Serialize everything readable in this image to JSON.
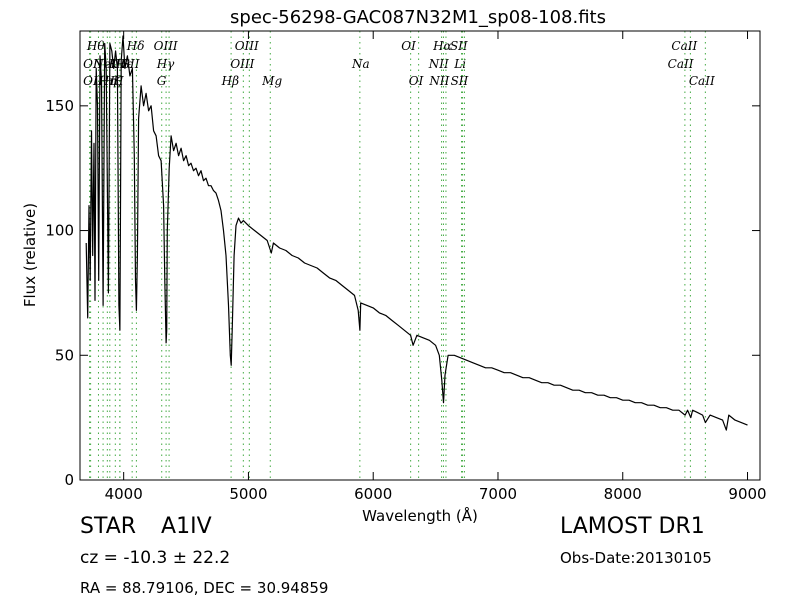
{
  "chart_data": {
    "type": "line",
    "title": "spec-56298-GAC087N32M1_sp08-108.fits",
    "xlabel": "Wavelength (Å)",
    "ylabel": "Flux (relative)",
    "xlim": [
      3650,
      9100
    ],
    "ylim": [
      0,
      180
    ],
    "x_ticks": [
      4000,
      5000,
      6000,
      7000,
      8000,
      9000
    ],
    "y_ticks": [
      0,
      50,
      100,
      150
    ],
    "grid": false,
    "series": [
      {
        "color": "#000000",
        "points": [
          [
            3700,
            95
          ],
          [
            3712,
            65
          ],
          [
            3722,
            110
          ],
          [
            3732,
            80
          ],
          [
            3742,
            140
          ],
          [
            3752,
            90
          ],
          [
            3762,
            135
          ],
          [
            3770,
            72
          ],
          [
            3780,
            165
          ],
          [
            3790,
            150
          ],
          [
            3800,
            80
          ],
          [
            3810,
            170
          ],
          [
            3822,
            160
          ],
          [
            3835,
            70
          ],
          [
            3848,
            175
          ],
          [
            3860,
            165
          ],
          [
            3878,
            75
          ],
          [
            3890,
            175
          ],
          [
            3905,
            172
          ],
          [
            3920,
            165
          ],
          [
            3935,
            172
          ],
          [
            3950,
            165
          ],
          [
            3962,
            70
          ],
          [
            3970,
            60
          ],
          [
            3980,
            168
          ],
          [
            3995,
            178
          ],
          [
            4010,
            165
          ],
          [
            4030,
            170
          ],
          [
            4050,
            162
          ],
          [
            4070,
            165
          ],
          [
            4085,
            130
          ],
          [
            4095,
            80
          ],
          [
            4102,
            68
          ],
          [
            4110,
            90
          ],
          [
            4120,
            145
          ],
          [
            4140,
            158
          ],
          [
            4160,
            150
          ],
          [
            4180,
            155
          ],
          [
            4200,
            148
          ],
          [
            4220,
            150
          ],
          [
            4240,
            140
          ],
          [
            4260,
            138
          ],
          [
            4280,
            130
          ],
          [
            4300,
            128
          ],
          [
            4320,
            110
          ],
          [
            4330,
            80
          ],
          [
            4340,
            55
          ],
          [
            4345,
            60
          ],
          [
            4350,
            100
          ],
          [
            4365,
            125
          ],
          [
            4380,
            138
          ],
          [
            4400,
            132
          ],
          [
            4420,
            135
          ],
          [
            4440,
            130
          ],
          [
            4460,
            133
          ],
          [
            4480,
            128
          ],
          [
            4500,
            130
          ],
          [
            4520,
            126
          ],
          [
            4540,
            127
          ],
          [
            4560,
            124
          ],
          [
            4580,
            125
          ],
          [
            4600,
            122
          ],
          [
            4620,
            124
          ],
          [
            4640,
            120
          ],
          [
            4660,
            121
          ],
          [
            4680,
            118
          ],
          [
            4700,
            118
          ],
          [
            4720,
            116
          ],
          [
            4740,
            115
          ],
          [
            4760,
            112
          ],
          [
            4780,
            108
          ],
          [
            4800,
            100
          ],
          [
            4820,
            90
          ],
          [
            4840,
            70
          ],
          [
            4855,
            50
          ],
          [
            4862,
            46
          ],
          [
            4870,
            60
          ],
          [
            4885,
            90
          ],
          [
            4900,
            102
          ],
          [
            4920,
            105
          ],
          [
            4940,
            103
          ],
          [
            4960,
            104
          ],
          [
            4980,
            103
          ],
          [
            5000,
            102
          ],
          [
            5050,
            100
          ],
          [
            5100,
            98
          ],
          [
            5150,
            96
          ],
          [
            5183,
            91
          ],
          [
            5200,
            95
          ],
          [
            5250,
            93
          ],
          [
            5300,
            92
          ],
          [
            5350,
            90
          ],
          [
            5400,
            89
          ],
          [
            5450,
            87
          ],
          [
            5500,
            86
          ],
          [
            5550,
            85
          ],
          [
            5600,
            83
          ],
          [
            5650,
            81
          ],
          [
            5700,
            80
          ],
          [
            5750,
            78
          ],
          [
            5800,
            76
          ],
          [
            5850,
            74
          ],
          [
            5880,
            68
          ],
          [
            5893,
            60
          ],
          [
            5900,
            71
          ],
          [
            5950,
            70
          ],
          [
            6000,
            69
          ],
          [
            6050,
            67
          ],
          [
            6100,
            66
          ],
          [
            6150,
            64
          ],
          [
            6200,
            62
          ],
          [
            6250,
            60
          ],
          [
            6300,
            58
          ],
          [
            6320,
            54
          ],
          [
            6350,
            58
          ],
          [
            6400,
            57
          ],
          [
            6450,
            56
          ],
          [
            6500,
            54
          ],
          [
            6530,
            50
          ],
          [
            6550,
            40
          ],
          [
            6563,
            31
          ],
          [
            6575,
            42
          ],
          [
            6600,
            50
          ],
          [
            6650,
            50
          ],
          [
            6700,
            49
          ],
          [
            6750,
            48
          ],
          [
            6800,
            47
          ],
          [
            6850,
            46
          ],
          [
            6900,
            45
          ],
          [
            6950,
            45
          ],
          [
            7000,
            44
          ],
          [
            7050,
            43
          ],
          [
            7100,
            43
          ],
          [
            7150,
            42
          ],
          [
            7200,
            41
          ],
          [
            7250,
            41
          ],
          [
            7300,
            40
          ],
          [
            7350,
            39
          ],
          [
            7400,
            39
          ],
          [
            7450,
            38
          ],
          [
            7500,
            38
          ],
          [
            7550,
            37
          ],
          [
            7600,
            36
          ],
          [
            7650,
            36
          ],
          [
            7700,
            35
          ],
          [
            7750,
            35
          ],
          [
            7800,
            34
          ],
          [
            7850,
            34
          ],
          [
            7900,
            33
          ],
          [
            7950,
            33
          ],
          [
            8000,
            32
          ],
          [
            8050,
            32
          ],
          [
            8100,
            31
          ],
          [
            8150,
            31
          ],
          [
            8200,
            30
          ],
          [
            8250,
            30
          ],
          [
            8300,
            29
          ],
          [
            8350,
            29
          ],
          [
            8400,
            28
          ],
          [
            8450,
            28
          ],
          [
            8500,
            26
          ],
          [
            8520,
            28
          ],
          [
            8545,
            25
          ],
          [
            8560,
            28
          ],
          [
            8600,
            27
          ],
          [
            8640,
            26
          ],
          [
            8662,
            23
          ],
          [
            8700,
            26
          ],
          [
            8750,
            25
          ],
          [
            8800,
            24
          ],
          [
            8830,
            20
          ],
          [
            8850,
            26
          ],
          [
            8900,
            24
          ],
          [
            8950,
            23
          ],
          [
            9000,
            22
          ]
        ]
      }
    ],
    "lines": [
      {
        "x": 3727,
        "label": "OII",
        "row": 1,
        "lx": 3675
      },
      {
        "x": 3735,
        "label": "OII",
        "row": 2,
        "lx": 3675
      },
      {
        "x": 3798,
        "label": "Hθ",
        "row": 0,
        "lx": 3705
      },
      {
        "x": 3835,
        "label": "Hη",
        "row": 2,
        "lx": 3800
      },
      {
        "x": 3869,
        "label": "NeIII",
        "row": 1,
        "lx": 3755
      },
      {
        "x": 3889,
        "label": "Hζ",
        "row": 2,
        "lx": 3845
      },
      {
        "x": 3933,
        "label": "K",
        "row": 1,
        "lx": 3880
      },
      {
        "x": 3969,
        "label": "H",
        "row": 2,
        "lx": 3915
      },
      {
        "x": 3970,
        "label": "Hε",
        "row": 1,
        "lx": 3940
      },
      {
        "x": 4068,
        "label": "SII",
        "row": 1,
        "lx": 3985
      },
      {
        "x": 4102,
        "label": "Hδ",
        "row": 0,
        "lx": 4025
      },
      {
        "x": 4305,
        "label": "G",
        "row": 2,
        "lx": 4265
      },
      {
        "x": 4340,
        "label": "Hγ",
        "row": 1,
        "lx": 4265
      },
      {
        "x": 4364,
        "label": "OIII",
        "row": 0,
        "lx": 4240
      },
      {
        "x": 4861,
        "label": "Hβ",
        "row": 2,
        "lx": 4785
      },
      {
        "x": 4959,
        "label": "OIII",
        "row": 1,
        "lx": 4855
      },
      {
        "x": 5007,
        "label": "OIII",
        "row": 0,
        "lx": 4890
      },
      {
        "x": 5175,
        "label": "Mg",
        "row": 2,
        "lx": 5110
      },
      {
        "x": 5893,
        "label": "Na",
        "row": 1,
        "lx": 5830
      },
      {
        "x": 6300,
        "label": "OI",
        "row": 0,
        "lx": 6225
      },
      {
        "x": 6364,
        "label": "OI",
        "row": 2,
        "lx": 6285
      },
      {
        "x": 6548,
        "label": "NII",
        "row": 1,
        "lx": 6445
      },
      {
        "x": 6563,
        "label": "Hα",
        "row": 0,
        "lx": 6480
      },
      {
        "x": 6583,
        "label": "NII",
        "row": 2,
        "lx": 6450
      },
      {
        "x": 6708,
        "label": "Li",
        "row": 1,
        "lx": 6650
      },
      {
        "x": 6716,
        "label": "SII",
        "row": 0,
        "lx": 6615
      },
      {
        "x": 6731,
        "label": "SII",
        "row": 2,
        "lx": 6620
      },
      {
        "x": 8498,
        "label": "CaII",
        "row": 1,
        "lx": 8360
      },
      {
        "x": 8542,
        "label": "CaII",
        "row": 0,
        "lx": 8390
      },
      {
        "x": 8662,
        "label": "CaII",
        "row": 2,
        "lx": 8530
      }
    ]
  },
  "info": {
    "obj_class": "STAR",
    "subclass": "A1IV",
    "cz": "cz = -10.3 ± 22.2",
    "coords": "RA = 88.79106, DEC = 30.94859",
    "survey": "LAMOST DR1",
    "obs_date": "Obs-Date:20130105"
  }
}
